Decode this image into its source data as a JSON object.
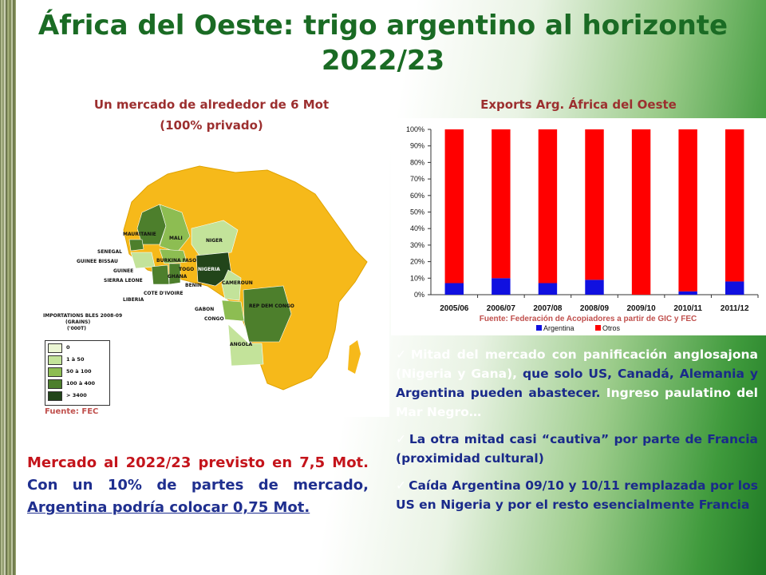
{
  "title_line1": "África del Oeste: trigo argentino al horizonte",
  "title_line2": "2022/23",
  "left_heading_line1": "Un mercado de alrededor de 6 Mot",
  "left_heading_line2": "(100% privado)",
  "map": {
    "labels": [
      "MAURITANIE",
      "MALI",
      "NIGER",
      "SENEGAL",
      "GUINEE BISSAU",
      "GUINEE",
      "SIERRA LEONE",
      "LIBERIA",
      "BURKINA FASO",
      "GHANA",
      "TOGO",
      "NIGERIA",
      "BENIN",
      "COTE D'IVOIRE",
      "CAMEROUN",
      "GABON",
      "REP DEM CONGO",
      "CONGO",
      "ANGOLA"
    ],
    "legend_title_1": "IMPORTATIONS BLES 2008-09",
    "legend_title_2": "(GRAINS)",
    "legend_title_3": "('000T)",
    "legend": [
      {
        "label": "0",
        "color": "#eaf5d3"
      },
      {
        "label": "1 à 50",
        "color": "#c3e39a"
      },
      {
        "label": "50 à 100",
        "color": "#8dbd52"
      },
      {
        "label": "100 à 400",
        "color": "#4d7f2c"
      },
      {
        "label": "> 3400",
        "color": "#22451a"
      }
    ],
    "source": "Fuente:  FEC"
  },
  "chart_title": "Exports Arg. África del Oeste",
  "chart_data": {
    "type": "bar",
    "stacked": true,
    "categories": [
      "2005/06",
      "2006/07",
      "2007/08",
      "2008/09",
      "2009/10",
      "2010/11",
      "2011/12"
    ],
    "series": [
      {
        "name": "Argentina",
        "color": "#1010e0",
        "values": [
          7,
          10,
          7,
          9,
          0,
          2,
          8
        ]
      },
      {
        "name": "Otros",
        "color": "#ff0000",
        "values": [
          93,
          90,
          93,
          91,
          100,
          98,
          92
        ]
      }
    ],
    "y_ticks": [
      "0%",
      "10%",
      "20%",
      "30%",
      "40%",
      "50%",
      "60%",
      "70%",
      "80%",
      "90%",
      "100%"
    ],
    "ylim": [
      0,
      100
    ],
    "legend_position": "bottom",
    "source": "Fuente:   Federación de Acopiadores a partir de GIC y FEC"
  },
  "bottom_left": {
    "part1": "Mercado al 2022/23 previsto en 7,5 Mot.",
    "part2": " Con un 10% de partes de mercado, ",
    "part3": "Argentina podría colocar 0,75 Mot."
  },
  "bullets": {
    "b1_a": "Mitad del mercado con panificación anglosajona (Nigeria y Gana),",
    "b1_b": " que solo US, Canadá, Alemania y Argentina pueden abastecer.",
    "b1_c": " Ingreso paulatino del Mar Negro…",
    "b2": "La otra mitad casi “cautiva” por parte de Francia (proximidad cultural)",
    "b3": "Caída Argentina 09/10 y 10/11 remplazada por los US en Nigeria y por el resto esencialmente Francia",
    "check": "✓"
  }
}
